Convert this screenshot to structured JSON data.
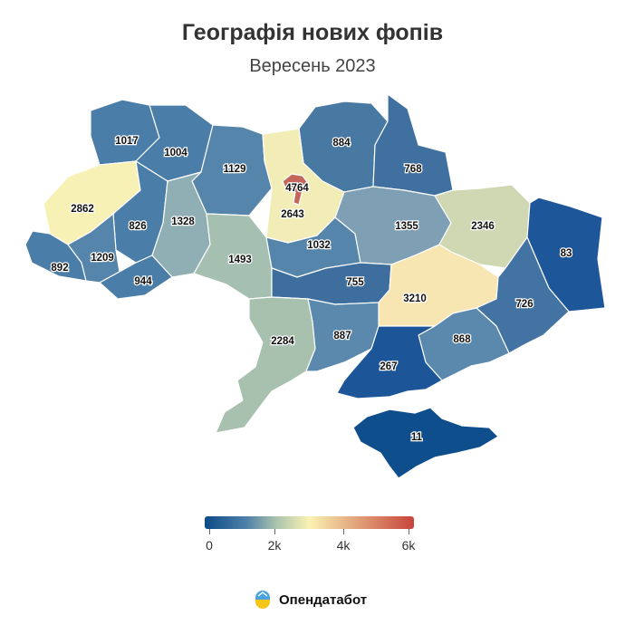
{
  "title": "Географія нових фопів",
  "subtitle": "Вересень 2023",
  "map": {
    "metric": "new sole proprietors (ФОП)",
    "colors": {
      "low": "#0d4b87",
      "mid_low": "#4f80a8",
      "mid": "#a9c2ad",
      "middle": "#faf2b2",
      "high": "#c8443c"
    },
    "regions": [
      {
        "key": "volyn",
        "value": "1017"
      },
      {
        "key": "rivne",
        "value": "1004"
      },
      {
        "key": "zhytomyr",
        "value": "1129"
      },
      {
        "key": "kyiv_city",
        "value": "4764"
      },
      {
        "key": "kyiv_oblast",
        "value": "2643"
      },
      {
        "key": "chernihiv",
        "value": "884"
      },
      {
        "key": "sumy",
        "value": "768"
      },
      {
        "key": "lviv",
        "value": "2862"
      },
      {
        "key": "ternopil",
        "value": "826"
      },
      {
        "key": "khmelnytskyi",
        "value": "1328"
      },
      {
        "key": "vinnytsia",
        "value": "1493"
      },
      {
        "key": "cherkasy",
        "value": "1032"
      },
      {
        "key": "poltava",
        "value": "1355"
      },
      {
        "key": "kharkiv",
        "value": "2346"
      },
      {
        "key": "luhansk",
        "value": "83"
      },
      {
        "key": "zakarpattia",
        "value": "892"
      },
      {
        "key": "ivano_frankivsk",
        "value": "1209"
      },
      {
        "key": "chernivtsi",
        "value": "944"
      },
      {
        "key": "kirovohrad",
        "value": "755"
      },
      {
        "key": "dnipropetrovsk",
        "value": "3210"
      },
      {
        "key": "donetsk",
        "value": "726"
      },
      {
        "key": "odesa",
        "value": "2284"
      },
      {
        "key": "mykolaiv",
        "value": "887"
      },
      {
        "key": "zaporizhzhia",
        "value": "868"
      },
      {
        "key": "kherson",
        "value": "267"
      },
      {
        "key": "crimea",
        "value": "11"
      }
    ]
  },
  "legend": {
    "ticks": [
      "0",
      "2k",
      "4k",
      "6k"
    ]
  },
  "brand": {
    "name": "Опендатабот",
    "logo_icon": "opendatabot-logo-icon"
  }
}
